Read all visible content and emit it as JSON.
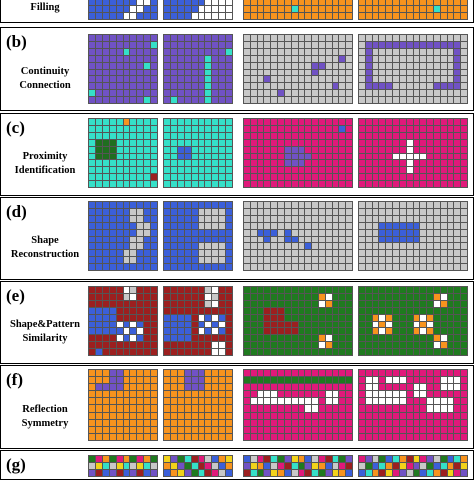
{
  "colors": {
    "blue": "#3b5fd9",
    "purple": "#7052c4",
    "cyan": "#35e0c8",
    "gray": "#c8c8c8",
    "white": "#ffffff",
    "orange": "#f7931e",
    "magenta": "#e0197a",
    "green": "#1f7a1f",
    "darkgreen": "#1f6e1f",
    "red": "#9c1f1f",
    "yellow": "#f2d21a",
    "dark": "#222222"
  },
  "rows": [
    {
      "letter": "",
      "name_lines": [
        "Filling",
        ""
      ],
      "id": "a"
    },
    {
      "letter": "(b)",
      "name_lines": [
        "Continuity",
        "Connection"
      ],
      "id": "b"
    },
    {
      "letter": "(c)",
      "name_lines": [
        "Proximity",
        "Identification"
      ],
      "id": "c"
    },
    {
      "letter": "(d)",
      "name_lines": [
        "Shape",
        "Reconstruction"
      ],
      "id": "d"
    },
    {
      "letter": "(e)",
      "name_lines": [
        "Shape&Pattern",
        "Similarity"
      ],
      "id": "e"
    },
    {
      "letter": "(f)",
      "name_lines": [
        "Reflection",
        "Symmetry"
      ],
      "id": "f"
    },
    {
      "letter": "(g)",
      "name_lines": [
        "",
        ""
      ],
      "id": "g"
    }
  ]
}
